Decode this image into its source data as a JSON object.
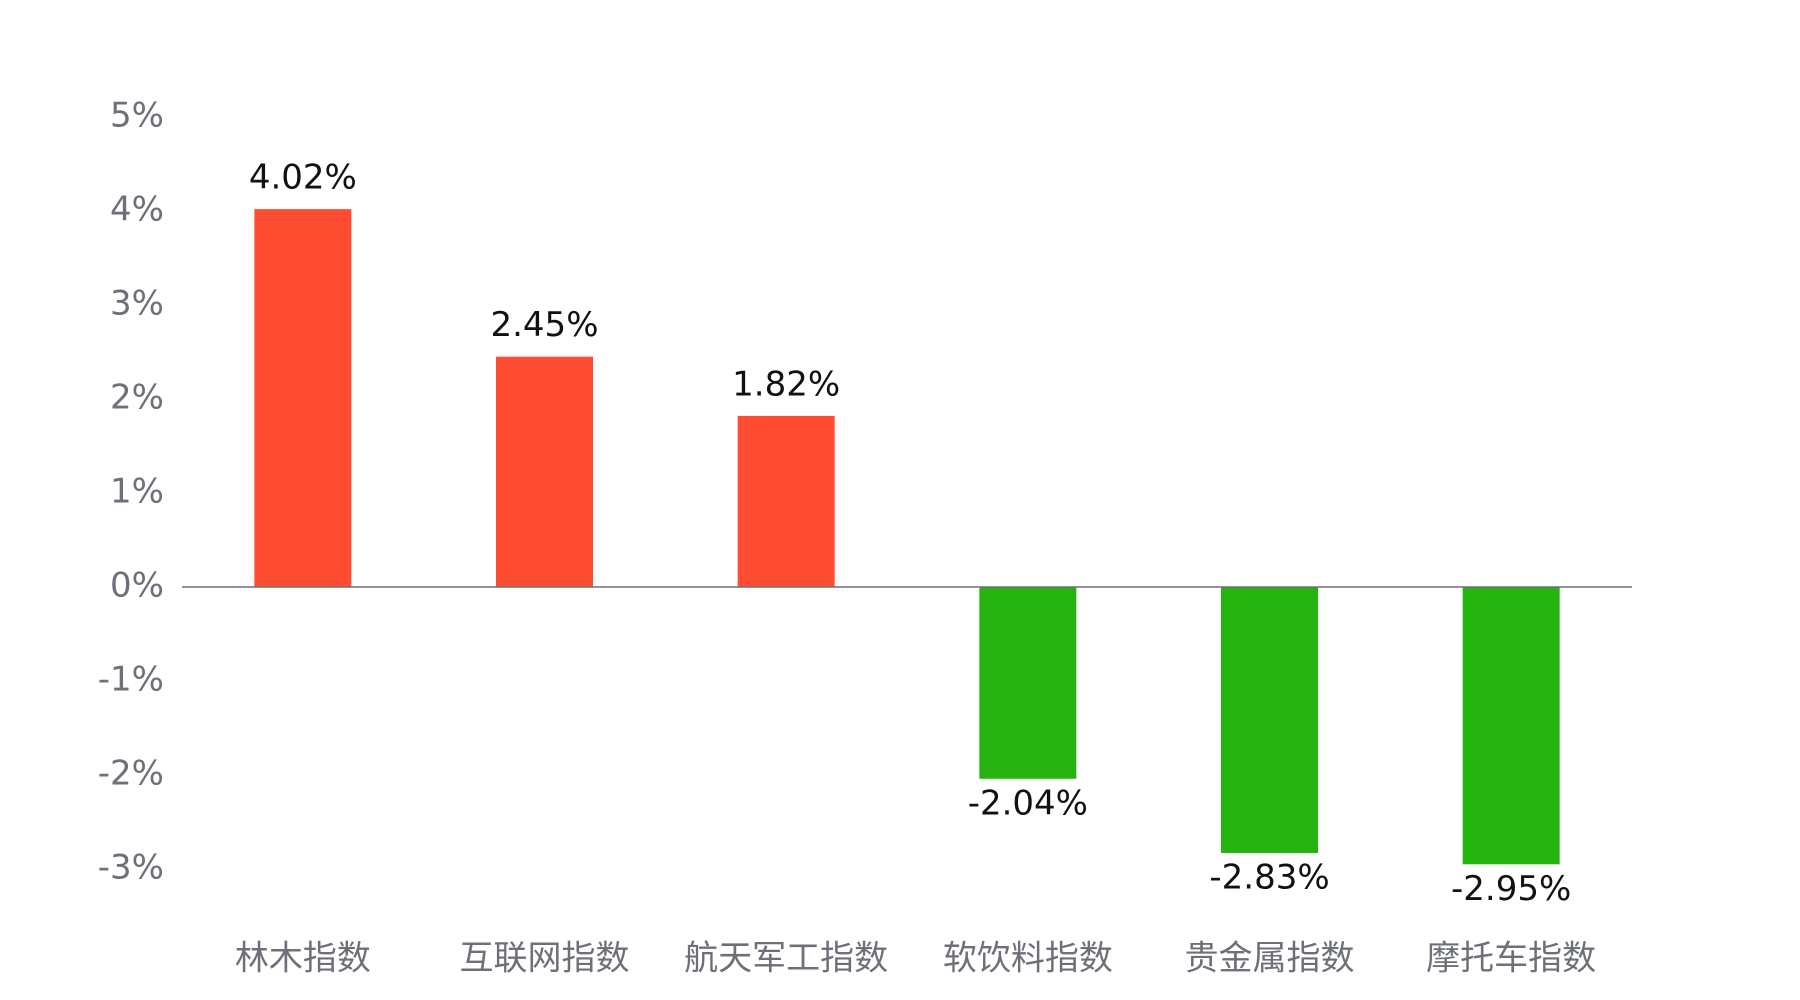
{
  "chart_data": {
    "type": "bar",
    "categories": [
      "林木指数",
      "互联网指数",
      "航天军工指数",
      "软饮料指数",
      "贵金属指数",
      "摩托车指数"
    ],
    "values": [
      4.02,
      2.45,
      1.82,
      -2.04,
      -2.83,
      -2.95
    ],
    "value_labels": [
      "4.02%",
      "2.45%",
      "1.82%",
      "-2.04%",
      "-2.83%",
      "-2.95%"
    ],
    "positive_color": "#ff4d33",
    "negative_color": "#27b30f",
    "ylim": [
      -3,
      5
    ],
    "yticks": [
      {
        "value": -3,
        "label": "-3%"
      },
      {
        "value": -2,
        "label": "-2%"
      },
      {
        "value": -1,
        "label": "-1%"
      },
      {
        "value": 0,
        "label": "0%"
      },
      {
        "value": 1,
        "label": "1%"
      },
      {
        "value": 2,
        "label": "2%"
      },
      {
        "value": 3,
        "label": "3%"
      },
      {
        "value": 4,
        "label": "4%"
      },
      {
        "value": 5,
        "label": "5%"
      }
    ],
    "grid": false
  }
}
